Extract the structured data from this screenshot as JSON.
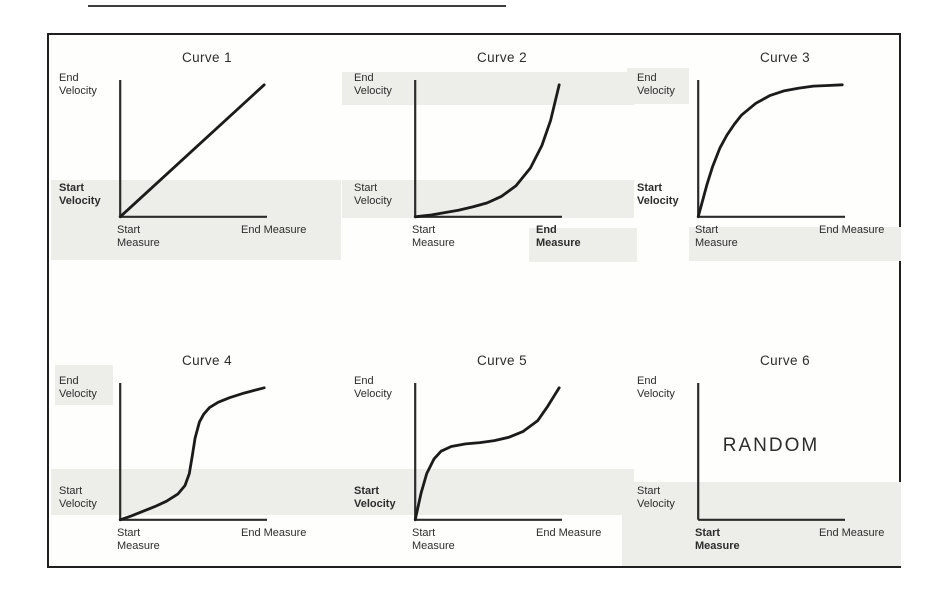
{
  "figure": {
    "background": "#ffffff",
    "border_color": "#1f1f1f",
    "axis_color": "#2b2b2b",
    "curve_color": "#1b1b1b",
    "text_color": "#2d2d2d",
    "shade_color": "#ededea"
  },
  "panels": [
    {
      "title": "Curve 1",
      "y_axis_top": "End Velocity",
      "y_axis_bottom": "Start Velocity",
      "x_axis_left": "Start Measure",
      "x_axis_right": "End Measure",
      "curve_type": "linear",
      "y_bottom_bold": true,
      "curve_points": [
        [
          0,
          0
        ],
        [
          1,
          1
        ]
      ]
    },
    {
      "title": "Curve 2",
      "y_axis_top": "End Velocity",
      "y_axis_bottom": "Start Velocity",
      "x_axis_left": "Start Measure",
      "x_axis_right": "End Measure",
      "curve_type": "exponential",
      "x_right_bold": true,
      "curve_points": [
        [
          0,
          0
        ],
        [
          0.1,
          0.012
        ],
        [
          0.2,
          0.03
        ],
        [
          0.3,
          0.05
        ],
        [
          0.4,
          0.075
        ],
        [
          0.5,
          0.105
        ],
        [
          0.6,
          0.155
        ],
        [
          0.7,
          0.235
        ],
        [
          0.8,
          0.37
        ],
        [
          0.88,
          0.54
        ],
        [
          0.94,
          0.73
        ],
        [
          1,
          1
        ]
      ]
    },
    {
      "title": "Curve 3",
      "y_axis_top": "End Velocity",
      "y_axis_bottom": "Start Velocity",
      "x_axis_left": "Start Measure",
      "x_axis_right": "End Measure",
      "curve_type": "logarithmic",
      "y_bottom_bold": true,
      "curve_points": [
        [
          0,
          0
        ],
        [
          0.03,
          0.12
        ],
        [
          0.06,
          0.24
        ],
        [
          0.1,
          0.38
        ],
        [
          0.15,
          0.52
        ],
        [
          0.2,
          0.62
        ],
        [
          0.25,
          0.7
        ],
        [
          0.3,
          0.77
        ],
        [
          0.4,
          0.86
        ],
        [
          0.5,
          0.92
        ],
        [
          0.6,
          0.955
        ],
        [
          0.7,
          0.975
        ],
        [
          0.8,
          0.99
        ],
        [
          0.9,
          0.995
        ],
        [
          1,
          1
        ]
      ]
    },
    {
      "title": "Curve 4",
      "y_axis_top": "End Velocity",
      "y_axis_bottom": "Start Velocity",
      "x_axis_left": "Start Measure",
      "x_axis_right": "End Measure",
      "curve_type": "sigmoid",
      "curve_points": [
        [
          0,
          0
        ],
        [
          0.08,
          0.03
        ],
        [
          0.16,
          0.065
        ],
        [
          0.24,
          0.1
        ],
        [
          0.32,
          0.14
        ],
        [
          0.4,
          0.195
        ],
        [
          0.45,
          0.26
        ],
        [
          0.48,
          0.35
        ],
        [
          0.5,
          0.48
        ],
        [
          0.52,
          0.62
        ],
        [
          0.55,
          0.74
        ],
        [
          0.58,
          0.8
        ],
        [
          0.62,
          0.85
        ],
        [
          0.68,
          0.89
        ],
        [
          0.76,
          0.925
        ],
        [
          0.86,
          0.96
        ],
        [
          1,
          1
        ]
      ]
    },
    {
      "title": "Curve 5",
      "y_axis_top": "End Velocity",
      "y_axis_bottom": "Start Velocity",
      "x_axis_left": "Start Measure",
      "x_axis_right": "End Measure",
      "curve_type": "inverse-sigmoid",
      "y_bottom_bold": true,
      "curve_points": [
        [
          0,
          0
        ],
        [
          0.04,
          0.2
        ],
        [
          0.08,
          0.35
        ],
        [
          0.13,
          0.46
        ],
        [
          0.18,
          0.52
        ],
        [
          0.25,
          0.555
        ],
        [
          0.35,
          0.575
        ],
        [
          0.45,
          0.585
        ],
        [
          0.55,
          0.6
        ],
        [
          0.65,
          0.625
        ],
        [
          0.75,
          0.67
        ],
        [
          0.85,
          0.75
        ],
        [
          0.92,
          0.86
        ],
        [
          1,
          1
        ]
      ]
    },
    {
      "title": "Curve 6",
      "y_axis_top": "End Velocity",
      "y_axis_bottom": "Start Velocity",
      "x_axis_left": "Start Measure",
      "x_axis_right": "End Measure",
      "curve_type": "random",
      "x_left_bold": true,
      "annotation": "RANDOM",
      "curve_points": []
    }
  ]
}
